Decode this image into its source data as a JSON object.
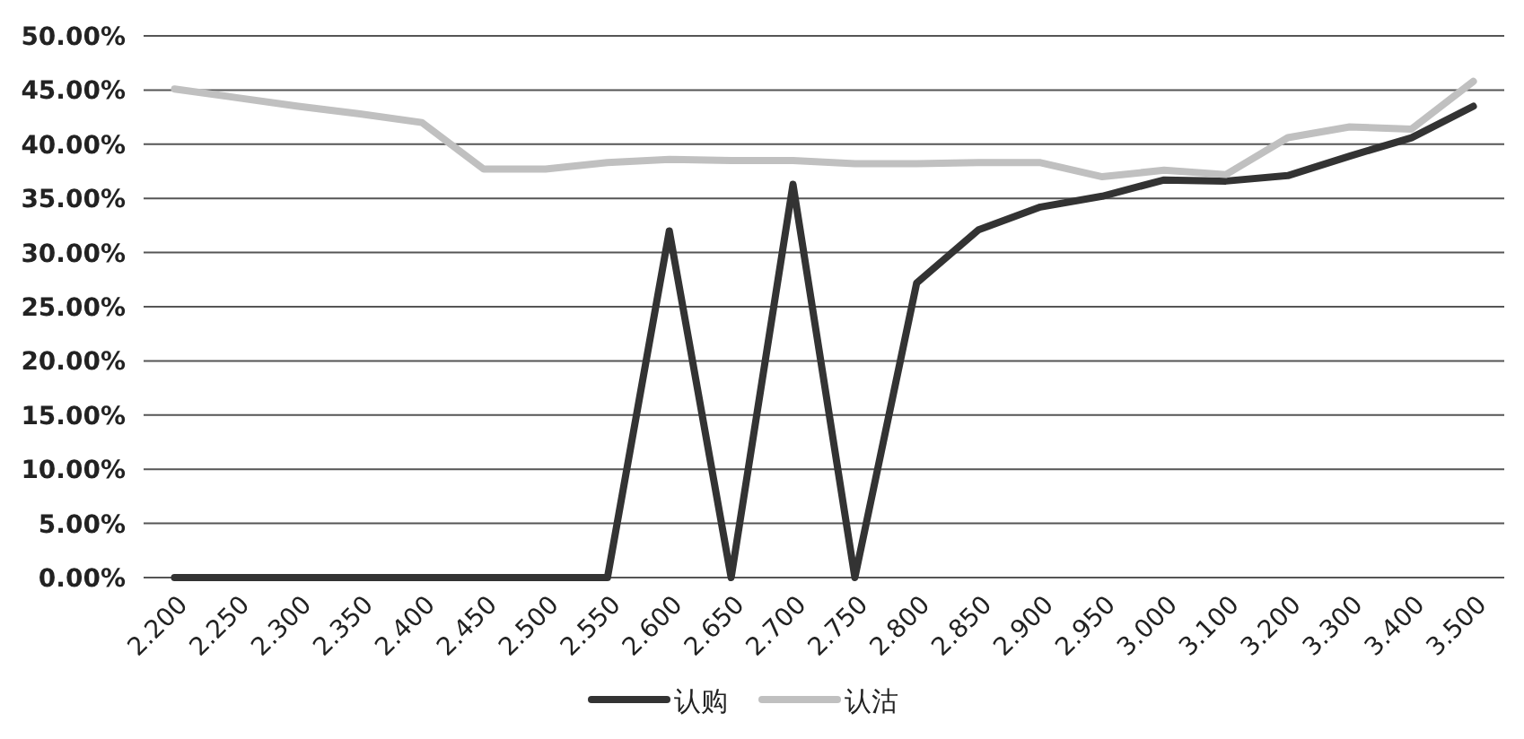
{
  "chart_data": {
    "type": "line",
    "categories": [
      "2.200",
      "2.250",
      "2.300",
      "2.350",
      "2.400",
      "2.450",
      "2.500",
      "2.550",
      "2.600",
      "2.650",
      "2.700",
      "2.750",
      "2.800",
      "2.850",
      "2.900",
      "2.950",
      "3.000",
      "3.100",
      "3.200",
      "3.300",
      "3.400",
      "3.500"
    ],
    "series": [
      {
        "name": "认购",
        "color": "#333333",
        "values": [
          0,
          0,
          0,
          0,
          0,
          0,
          0,
          0,
          32.0,
          0,
          36.3,
          0,
          27.2,
          32.1,
          34.2,
          35.2,
          36.7,
          36.6,
          37.1,
          38.9,
          40.6,
          43.5
        ]
      },
      {
        "name": "认沽",
        "color": "#c0c0c0",
        "values": [
          45.1,
          44.3,
          43.5,
          42.8,
          42.0,
          37.7,
          37.7,
          38.3,
          38.6,
          38.5,
          38.5,
          38.2,
          38.2,
          38.3,
          38.3,
          37.0,
          37.6,
          37.2,
          40.6,
          41.6,
          41.4,
          45.8
        ]
      }
    ],
    "ylim": [
      0,
      50
    ],
    "yticks": [
      {
        "value": 0,
        "label": "0.00%"
      },
      {
        "value": 5,
        "label": "5.00%"
      },
      {
        "value": 10,
        "label": "10.00%"
      },
      {
        "value": 15,
        "label": "15.00%"
      },
      {
        "value": 20,
        "label": "20.00%"
      },
      {
        "value": 25,
        "label": "25.00%"
      },
      {
        "value": 30,
        "label": "30.00%"
      },
      {
        "value": 35,
        "label": "35.00%"
      },
      {
        "value": 40,
        "label": "40.00%"
      },
      {
        "value": 45,
        "label": "45.00%"
      },
      {
        "value": 50,
        "label": "50.00%"
      }
    ],
    "grid": "y",
    "legend": "bottom",
    "marker": "none",
    "line_style": "solid"
  }
}
